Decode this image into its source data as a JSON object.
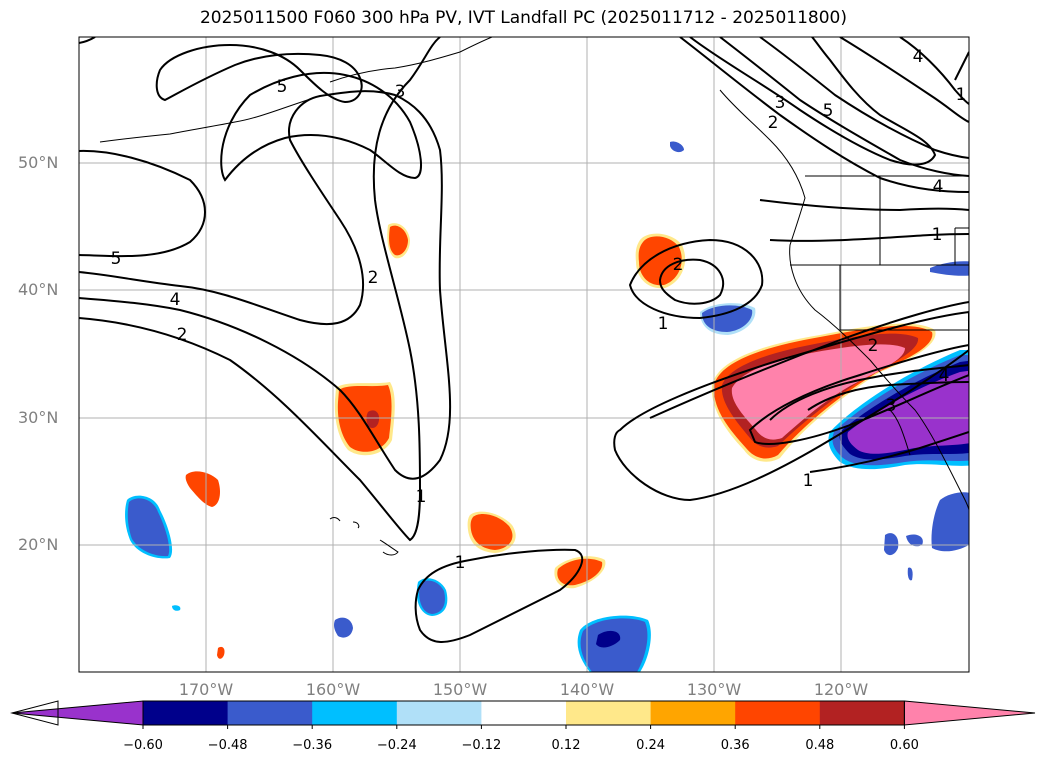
{
  "title": "2025011500 F060 300 hPa PV, IVT Landfall PC (2025011712 - 2025011800)",
  "map": {
    "lat_labels": [
      "50°N",
      "40°N",
      "30°N",
      "20°N"
    ],
    "lon_labels": [
      "170°W",
      "160°W",
      "150°W",
      "140°W",
      "130°W",
      "120°W"
    ],
    "contour_labels": [
      "5",
      "3",
      "5",
      "4",
      "2",
      "2",
      "1",
      "1",
      "2",
      "1",
      "1",
      "3",
      "2",
      "5",
      "4",
      "4",
      "1",
      "2",
      "4",
      "3",
      "1"
    ]
  },
  "colorbar": {
    "ticks": [
      "−0.60",
      "−0.48",
      "−0.36",
      "−0.24",
      "−0.12",
      "0.12",
      "0.24",
      "0.36",
      "0.48",
      "0.60"
    ],
    "colors": [
      "#9932CC",
      "#00008B",
      "#3A5BCC",
      "#00BFFF",
      "#B0E0F8",
      "#FFFFFF",
      "#FFE88A",
      "#FFA500",
      "#FF4500",
      "#B22222",
      "#FF82AB"
    ]
  }
}
